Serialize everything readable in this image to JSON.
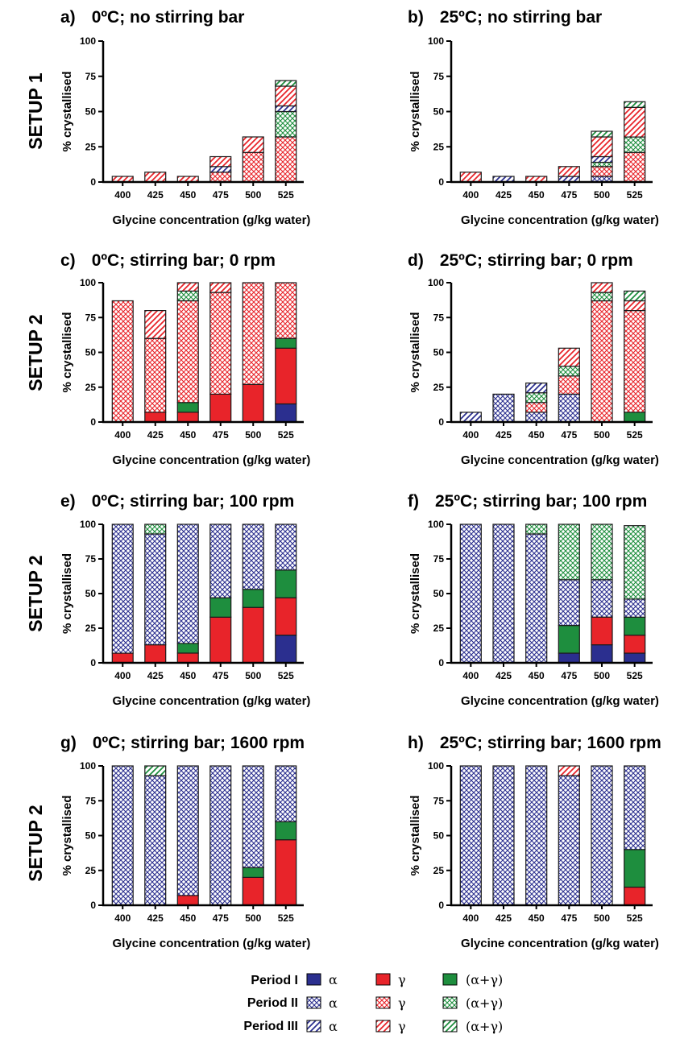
{
  "figure": {
    "row_labels": [
      "SETUP 1",
      "SETUP 2",
      "SETUP 2",
      "SETUP 2"
    ],
    "legend": {
      "periods": [
        "Period I",
        "Period II",
        "Period III"
      ],
      "forms": [
        "α",
        "γ",
        "(α+γ)"
      ]
    },
    "colors": {
      "alpha": "#2b2f8f",
      "gamma": "#e8242a",
      "mix": "#1e8e3e"
    }
  },
  "chart_data": [
    {
      "type": "bar",
      "stacked": true,
      "panel": "a)",
      "title": "0ºC; no stirring bar",
      "xlabel": "Glycine concentration (g/kg water)",
      "ylabel": "% crystallised",
      "categories": [
        "400",
        "425",
        "450",
        "475",
        "500",
        "525"
      ],
      "yticks": [
        "0",
        "25",
        "50",
        "75",
        "100"
      ],
      "ylim": [
        0,
        100
      ],
      "series": [
        {
          "name": "Period I α",
          "values": [
            0,
            0,
            0,
            0,
            0,
            0
          ]
        },
        {
          "name": "Period I γ",
          "values": [
            0,
            0,
            0,
            0,
            0,
            0
          ]
        },
        {
          "name": "Period I (α+γ)",
          "values": [
            0,
            0,
            0,
            0,
            0,
            0
          ]
        },
        {
          "name": "Period II α",
          "values": [
            0,
            0,
            0,
            0,
            0,
            0
          ]
        },
        {
          "name": "Period II γ",
          "values": [
            0,
            0,
            0,
            7,
            21,
            32
          ]
        },
        {
          "name": "Period II (α+γ)",
          "values": [
            0,
            0,
            0,
            0,
            0,
            18
          ]
        },
        {
          "name": "Period III α",
          "values": [
            0,
            0,
            0,
            4,
            0,
            4
          ]
        },
        {
          "name": "Period III γ",
          "values": [
            4,
            7,
            4,
            7,
            11,
            14
          ]
        },
        {
          "name": "Period III (α+γ)",
          "values": [
            0,
            0,
            0,
            0,
            0,
            4
          ]
        }
      ]
    },
    {
      "type": "bar",
      "stacked": true,
      "panel": "b)",
      "title": "25ºC; no stirring bar",
      "xlabel": "Glycine concentration (g/kg water)",
      "ylabel": "% crystallised",
      "categories": [
        "400",
        "425",
        "450",
        "475",
        "500",
        "525"
      ],
      "yticks": [
        "0",
        "25",
        "50",
        "75",
        "100"
      ],
      "ylim": [
        0,
        100
      ],
      "series": [
        {
          "name": "Period I α",
          "values": [
            0,
            0,
            0,
            0,
            0,
            0
          ]
        },
        {
          "name": "Period I γ",
          "values": [
            0,
            0,
            0,
            0,
            0,
            0
          ]
        },
        {
          "name": "Period I (α+γ)",
          "values": [
            0,
            0,
            0,
            0,
            0,
            0
          ]
        },
        {
          "name": "Period II α",
          "values": [
            0,
            0,
            0,
            0,
            4,
            0
          ]
        },
        {
          "name": "Period II γ",
          "values": [
            0,
            0,
            0,
            0,
            7,
            21
          ]
        },
        {
          "name": "Period II (α+γ)",
          "values": [
            0,
            0,
            0,
            0,
            3,
            11
          ]
        },
        {
          "name": "Period III α",
          "values": [
            0,
            4,
            0,
            4,
            4,
            0
          ]
        },
        {
          "name": "Period III γ",
          "values": [
            7,
            0,
            4,
            7,
            14,
            21
          ]
        },
        {
          "name": "Period III (α+γ)",
          "values": [
            0,
            0,
            0,
            0,
            4,
            4
          ]
        }
      ]
    },
    {
      "type": "bar",
      "stacked": true,
      "panel": "c)",
      "title": "0ºC; stirring bar; 0 rpm",
      "xlabel": "Glycine concentration (g/kg water)",
      "ylabel": "% crystallised",
      "categories": [
        "400",
        "425",
        "450",
        "475",
        "500",
        "525"
      ],
      "yticks": [
        "0",
        "25",
        "50",
        "75",
        "100"
      ],
      "ylim": [
        0,
        100
      ],
      "series": [
        {
          "name": "Period I α",
          "values": [
            0,
            0,
            0,
            0,
            0,
            13
          ]
        },
        {
          "name": "Period I γ",
          "values": [
            0,
            7,
            7,
            20,
            27,
            40
          ]
        },
        {
          "name": "Period I (α+γ)",
          "values": [
            0,
            0,
            7,
            0,
            0,
            7
          ]
        },
        {
          "name": "Period II α",
          "values": [
            0,
            0,
            0,
            0,
            0,
            0
          ]
        },
        {
          "name": "Period II γ",
          "values": [
            87,
            53,
            73,
            73,
            73,
            40
          ]
        },
        {
          "name": "Period II (α+γ)",
          "values": [
            0,
            0,
            7,
            0,
            0,
            0
          ]
        },
        {
          "name": "Period III α",
          "values": [
            0,
            0,
            0,
            0,
            0,
            0
          ]
        },
        {
          "name": "Period III γ",
          "values": [
            0,
            20,
            6,
            7,
            0,
            0
          ]
        },
        {
          "name": "Period III (α+γ)",
          "values": [
            0,
            0,
            0,
            0,
            0,
            0
          ]
        }
      ]
    },
    {
      "type": "bar",
      "stacked": true,
      "panel": "d)",
      "title": "25ºC; stirring bar; 0 rpm",
      "xlabel": "Glycine concentration (g/kg water)",
      "ylabel": "% crystallised",
      "categories": [
        "400",
        "425",
        "450",
        "475",
        "500",
        "525"
      ],
      "yticks": [
        "0",
        "25",
        "50",
        "75",
        "100"
      ],
      "ylim": [
        0,
        100
      ],
      "series": [
        {
          "name": "Period I α",
          "values": [
            0,
            0,
            0,
            0,
            0,
            0
          ]
        },
        {
          "name": "Period I γ",
          "values": [
            0,
            0,
            0,
            0,
            0,
            0
          ]
        },
        {
          "name": "Period I (α+γ)",
          "values": [
            0,
            0,
            0,
            0,
            0,
            7
          ]
        },
        {
          "name": "Period II α",
          "values": [
            0,
            20,
            7,
            20,
            0,
            0
          ]
        },
        {
          "name": "Period II γ",
          "values": [
            0,
            0,
            7,
            13,
            87,
            73
          ]
        },
        {
          "name": "Period II (α+γ)",
          "values": [
            0,
            0,
            7,
            7,
            6,
            0
          ]
        },
        {
          "name": "Period III α",
          "values": [
            7,
            0,
            7,
            0,
            0,
            0
          ]
        },
        {
          "name": "Period III γ",
          "values": [
            0,
            0,
            0,
            13,
            7,
            7
          ]
        },
        {
          "name": "Period III (α+γ)",
          "values": [
            0,
            0,
            0,
            0,
            0,
            7
          ]
        }
      ]
    },
    {
      "type": "bar",
      "stacked": true,
      "panel": "e)",
      "title": "0ºC; stirring bar; 100 rpm",
      "xlabel": "Glycine concentration (g/kg water)",
      "ylabel": "% crystallised",
      "categories": [
        "400",
        "425",
        "450",
        "475",
        "500",
        "525"
      ],
      "yticks": [
        "0",
        "25",
        "50",
        "75",
        "100"
      ],
      "ylim": [
        0,
        100
      ],
      "series": [
        {
          "name": "Period I α",
          "values": [
            0,
            0,
            0,
            0,
            0,
            20
          ]
        },
        {
          "name": "Period I γ",
          "values": [
            7,
            13,
            7,
            33,
            40,
            27
          ]
        },
        {
          "name": "Period I (α+γ)",
          "values": [
            0,
            0,
            7,
            14,
            13,
            20
          ]
        },
        {
          "name": "Period II α",
          "values": [
            93,
            80,
            86,
            53,
            47,
            33
          ]
        },
        {
          "name": "Period II γ",
          "values": [
            0,
            0,
            0,
            0,
            0,
            0
          ]
        },
        {
          "name": "Period II (α+γ)",
          "values": [
            0,
            7,
            0,
            0,
            0,
            0
          ]
        },
        {
          "name": "Period III α",
          "values": [
            0,
            0,
            0,
            0,
            0,
            0
          ]
        },
        {
          "name": "Period III γ",
          "values": [
            0,
            0,
            0,
            0,
            0,
            0
          ]
        },
        {
          "name": "Period III (α+γ)",
          "values": [
            0,
            0,
            0,
            0,
            0,
            0
          ]
        }
      ]
    },
    {
      "type": "bar",
      "stacked": true,
      "panel": "f)",
      "title": "25ºC; stirring bar; 100 rpm",
      "xlabel": "Glycine concentration (g/kg water)",
      "ylabel": "% crystallised",
      "categories": [
        "400",
        "425",
        "450",
        "475",
        "500",
        "525"
      ],
      "yticks": [
        "0",
        "25",
        "50",
        "75",
        "100"
      ],
      "ylim": [
        0,
        100
      ],
      "series": [
        {
          "name": "Period I α",
          "values": [
            0,
            0,
            0,
            7,
            13,
            7
          ]
        },
        {
          "name": "Period I γ",
          "values": [
            0,
            0,
            0,
            0,
            20,
            13
          ]
        },
        {
          "name": "Period I (α+γ)",
          "values": [
            0,
            0,
            0,
            20,
            0,
            13
          ]
        },
        {
          "name": "Period II α",
          "values": [
            100,
            100,
            93,
            33,
            27,
            13
          ]
        },
        {
          "name": "Period II γ",
          "values": [
            0,
            0,
            0,
            0,
            0,
            0
          ]
        },
        {
          "name": "Period II (α+γ)",
          "values": [
            0,
            0,
            7,
            40,
            40,
            53
          ]
        },
        {
          "name": "Period III α",
          "values": [
            0,
            0,
            0,
            0,
            0,
            0
          ]
        },
        {
          "name": "Period III γ",
          "values": [
            0,
            0,
            0,
            0,
            0,
            0
          ]
        },
        {
          "name": "Period III (α+γ)",
          "values": [
            0,
            0,
            0,
            0,
            0,
            0
          ]
        }
      ]
    },
    {
      "type": "bar",
      "stacked": true,
      "panel": "g)",
      "title": "0ºC; stirring bar; 1600 rpm",
      "xlabel": "Glycine concentration (g/kg water)",
      "ylabel": "% crystallised",
      "categories": [
        "400",
        "425",
        "450",
        "475",
        "500",
        "525"
      ],
      "yticks": [
        "0",
        "25",
        "50",
        "75",
        "100"
      ],
      "ylim": [
        0,
        100
      ],
      "series": [
        {
          "name": "Period I α",
          "values": [
            0,
            0,
            0,
            0,
            0,
            0
          ]
        },
        {
          "name": "Period I γ",
          "values": [
            0,
            0,
            7,
            0,
            20,
            47
          ]
        },
        {
          "name": "Period I (α+γ)",
          "values": [
            0,
            0,
            0,
            0,
            7,
            13
          ]
        },
        {
          "name": "Period II α",
          "values": [
            100,
            93,
            93,
            100,
            73,
            40
          ]
        },
        {
          "name": "Period II γ",
          "values": [
            0,
            0,
            0,
            0,
            0,
            0
          ]
        },
        {
          "name": "Period II (α+γ)",
          "values": [
            0,
            0,
            0,
            0,
            0,
            0
          ]
        },
        {
          "name": "Period III α",
          "values": [
            0,
            0,
            0,
            0,
            0,
            0
          ]
        },
        {
          "name": "Period III γ",
          "values": [
            0,
            0,
            0,
            0,
            0,
            0
          ]
        },
        {
          "name": "Period III (α+γ)",
          "values": [
            0,
            7,
            0,
            0,
            0,
            0
          ]
        }
      ]
    },
    {
      "type": "bar",
      "stacked": true,
      "panel": "h)",
      "title": "25ºC; stirring bar; 1600 rpm",
      "xlabel": "Glycine concentration (g/kg water)",
      "ylabel": "% crystallised",
      "categories": [
        "400",
        "425",
        "450",
        "475",
        "500",
        "525"
      ],
      "yticks": [
        "0",
        "25",
        "50",
        "75",
        "100"
      ],
      "ylim": [
        0,
        100
      ],
      "series": [
        {
          "name": "Period I α",
          "values": [
            0,
            0,
            0,
            0,
            0,
            0
          ]
        },
        {
          "name": "Period I γ",
          "values": [
            0,
            0,
            0,
            0,
            0,
            13
          ]
        },
        {
          "name": "Period I (α+γ)",
          "values": [
            0,
            0,
            0,
            0,
            0,
            27
          ]
        },
        {
          "name": "Period II α",
          "values": [
            100,
            100,
            100,
            93,
            100,
            60
          ]
        },
        {
          "name": "Period II γ",
          "values": [
            0,
            0,
            0,
            0,
            0,
            0
          ]
        },
        {
          "name": "Period II (α+γ)",
          "values": [
            0,
            0,
            0,
            0,
            0,
            0
          ]
        },
        {
          "name": "Period III α",
          "values": [
            0,
            0,
            0,
            0,
            0,
            0
          ]
        },
        {
          "name": "Period III γ",
          "values": [
            0,
            0,
            0,
            7,
            0,
            0
          ]
        },
        {
          "name": "Period III (α+γ)",
          "values": [
            0,
            0,
            0,
            0,
            0,
            0
          ]
        }
      ]
    }
  ]
}
